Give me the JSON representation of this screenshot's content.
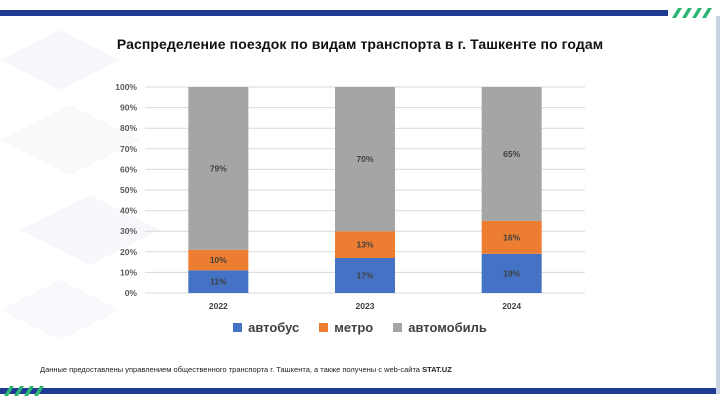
{
  "title": "Распределение поездок по видам транспорта в г. Ташкенте по годам",
  "footnote": {
    "text": "Данные предоставлены управлением общественного транспорта г. Ташкента, а также получены с web-сайта ",
    "source": "STAT.UZ"
  },
  "colors": {
    "bus": "#4472c4",
    "metro": "#ed7d31",
    "car": "#a5a5a5",
    "frame": "#1f3a93",
    "stripes": "#2bb673"
  },
  "chart_data": {
    "type": "bar",
    "stacked": true,
    "percent": true,
    "categories": [
      "2022",
      "2023",
      "2024"
    ],
    "series": [
      {
        "name": "автобус",
        "values": [
          11,
          17,
          19
        ],
        "labels": [
          "11%",
          "17%",
          "19%"
        ],
        "color": "#4472c4"
      },
      {
        "name": "метро",
        "values": [
          10,
          13,
          16
        ],
        "labels": [
          "10%",
          "13%",
          "16%"
        ],
        "color": "#ed7d31"
      },
      {
        "name": "автомобиль",
        "values": [
          79,
          70,
          65
        ],
        "labels": [
          "79%",
          "70%",
          "65%"
        ],
        "color": "#a5a5a5"
      }
    ],
    "ylim": [
      0,
      100
    ],
    "yticks": [
      "0%",
      "10%",
      "20%",
      "30%",
      "40%",
      "50%",
      "60%",
      "70%",
      "80%",
      "90%",
      "100%"
    ],
    "grid": true,
    "legend_position": "bottom",
    "xlabel": "",
    "ylabel": ""
  }
}
